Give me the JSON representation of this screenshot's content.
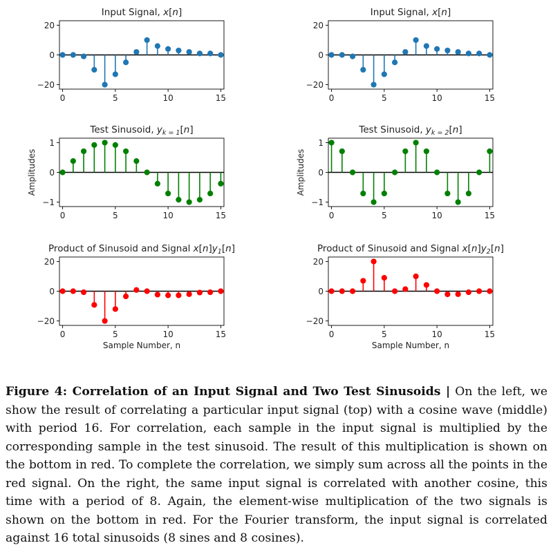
{
  "chart_data": [
    {
      "type": "stem",
      "title": "Input Signal, x[n]",
      "title_parts": [
        "Input Signal, ",
        "x",
        "[",
        "n",
        "]"
      ],
      "x": [
        0,
        1,
        2,
        3,
        4,
        5,
        6,
        7,
        8,
        9,
        10,
        11,
        12,
        13,
        14,
        15
      ],
      "values": [
        0,
        0,
        -1,
        -10,
        -20,
        -13,
        -5,
        2,
        10,
        6,
        4,
        3,
        2,
        1,
        1,
        0
      ],
      "ylim": [
        -23,
        23
      ],
      "xlim": [
        -0.3,
        15.3
      ],
      "yticks": [
        -20,
        0,
        20
      ],
      "ytick_labels": [
        "−20",
        "0",
        "20"
      ],
      "xticks": [
        0,
        5,
        10,
        15
      ],
      "xtick_labels": [
        "0",
        "5",
        "10",
        "15"
      ],
      "xlabel": "",
      "ylabel": "",
      "color": "#1f77b4"
    },
    {
      "type": "stem",
      "title": "Input Signal, x[n]",
      "title_parts": [
        "Input Signal, ",
        "x",
        "[",
        "n",
        "]"
      ],
      "x": [
        0,
        1,
        2,
        3,
        4,
        5,
        6,
        7,
        8,
        9,
        10,
        11,
        12,
        13,
        14,
        15
      ],
      "values": [
        0,
        0,
        -1,
        -10,
        -20,
        -13,
        -5,
        2,
        10,
        6,
        4,
        3,
        2,
        1,
        1,
        0
      ],
      "ylim": [
        -23,
        23
      ],
      "xlim": [
        -0.3,
        15.3
      ],
      "yticks": [
        -20,
        0,
        20
      ],
      "ytick_labels": [
        "−20",
        "0",
        "20"
      ],
      "xticks": [
        0,
        5,
        10,
        15
      ],
      "xtick_labels": [
        "0",
        "5",
        "10",
        "15"
      ],
      "xlabel": "",
      "ylabel": "",
      "color": "#1f77b4"
    },
    {
      "type": "stem",
      "title": "Test Sinusoid, y_k=1[n]",
      "title_parts": [
        "Test Sinusoid, ",
        "y",
        "k = 1",
        "[",
        "n",
        "]"
      ],
      "x": [
        0,
        1,
        2,
        3,
        4,
        5,
        6,
        7,
        8,
        9,
        10,
        11,
        12,
        13,
        14,
        15
      ],
      "values": [
        0,
        0.38,
        0.71,
        0.92,
        1,
        0.92,
        0.71,
        0.38,
        0,
        -0.38,
        -0.71,
        -0.92,
        -1,
        -0.92,
        -0.71,
        -0.38
      ],
      "ylim": [
        -1.15,
        1.15
      ],
      "xlim": [
        -0.3,
        15.3
      ],
      "yticks": [
        -1,
        0,
        1
      ],
      "ytick_labels": [
        "−1",
        "0",
        "1"
      ],
      "xticks": [
        0,
        5,
        10,
        15
      ],
      "xtick_labels": [
        "0",
        "5",
        "10",
        "15"
      ],
      "xlabel": "",
      "ylabel": "Amplitudes",
      "color": "#008000"
    },
    {
      "type": "stem",
      "title": "Test Sinusoid, y_k=2[n]",
      "title_parts": [
        "Test Sinusoid, ",
        "y",
        "k = 2",
        "[",
        "n",
        "]"
      ],
      "x": [
        0,
        1,
        2,
        3,
        4,
        5,
        6,
        7,
        8,
        9,
        10,
        11,
        12,
        13,
        14,
        15
      ],
      "values": [
        1,
        0.71,
        0,
        -0.71,
        -1,
        -0.71,
        0,
        0.71,
        1,
        0.71,
        0,
        -0.71,
        -1,
        -0.71,
        0,
        0.71
      ],
      "ylim": [
        -1.15,
        1.15
      ],
      "xlim": [
        -0.3,
        15.3
      ],
      "yticks": [
        -1,
        0,
        1
      ],
      "ytick_labels": [
        "−1",
        "0",
        "1"
      ],
      "xticks": [
        0,
        5,
        10,
        15
      ],
      "xtick_labels": [
        "0",
        "5",
        "10",
        "15"
      ],
      "xlabel": "",
      "ylabel": "Amplitudes",
      "color": "#008000"
    },
    {
      "type": "stem",
      "title": "Product of Sinusoid and Signal x[n]y1[n]",
      "title_parts": [
        "Product of Sinusoid and Signal ",
        "x",
        "[",
        "n",
        "]",
        "y",
        "1",
        "[",
        "n",
        "]"
      ],
      "x": [
        0,
        1,
        2,
        3,
        4,
        5,
        6,
        7,
        8,
        9,
        10,
        11,
        12,
        13,
        14,
        15
      ],
      "values": [
        0,
        0,
        -0.7,
        -9.2,
        -20,
        -12,
        -3.5,
        0.8,
        0,
        -2.3,
        -2.8,
        -2.8,
        -2,
        -0.9,
        -0.7,
        0
      ],
      "ylim": [
        -23,
        23
      ],
      "xlim": [
        -0.3,
        15.3
      ],
      "yticks": [
        -20,
        0,
        20
      ],
      "ytick_labels": [
        "−20",
        "0",
        "20"
      ],
      "xticks": [
        0,
        5,
        10,
        15
      ],
      "xtick_labels": [
        "0",
        "5",
        "10",
        "15"
      ],
      "xlabel": "Sample Number, n",
      "ylabel": "",
      "color": "#ff0000"
    },
    {
      "type": "stem",
      "title": "Product of Sinusoid and Signal x[n]y2[n]",
      "title_parts": [
        "Product of Sinusoid and Signal ",
        "x",
        "[",
        "n",
        "]",
        "y",
        "2",
        "[",
        "n",
        "]"
      ],
      "x": [
        0,
        1,
        2,
        3,
        4,
        5,
        6,
        7,
        8,
        9,
        10,
        11,
        12,
        13,
        14,
        15
      ],
      "values": [
        0,
        0,
        0,
        7,
        20,
        9,
        0,
        1.4,
        10,
        4.2,
        0,
        -2.1,
        -2,
        -0.7,
        0,
        0
      ],
      "ylim": [
        -23,
        23
      ],
      "xlim": [
        -0.3,
        15.3
      ],
      "yticks": [
        -20,
        0,
        20
      ],
      "ytick_labels": [
        "−20",
        "0",
        "20"
      ],
      "xticks": [
        0,
        5,
        10,
        15
      ],
      "xtick_labels": [
        "0",
        "5",
        "10",
        "15"
      ],
      "xlabel": "Sample Number, n",
      "ylabel": "",
      "color": "#ff0000"
    }
  ],
  "caption": {
    "bold": "Figure 4: Correlation of an Input Signal and Two Test Sinusoids |",
    "text": " On the left, we show the result of correlating a particular input signal (top) with a cosine wave (middle) with period 16. For correlation, each sample in the input signal is multiplied by the corresponding sample in the test sinusoid. The result of this multiplication is shown on the bottom in red. To complete the correlation, we simply sum across all the points in the red signal. On the right, the same input signal is correlated with another cosine, this time with a period of 8. Again, the element-wise multiplication of the two signals is shown on the bottom in red. For the Fourier transform, the input signal is correlated against 16 total sinusoids (8 sines and 8 cosines)."
  }
}
